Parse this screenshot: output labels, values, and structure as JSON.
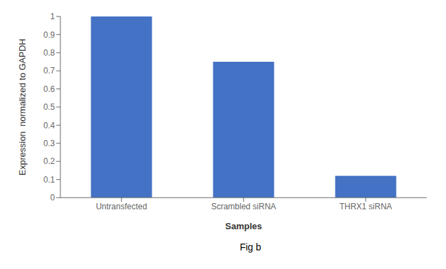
{
  "chart_data": {
    "type": "bar",
    "categories": [
      "Untransfected",
      "Scrambled siRNA",
      "THRX1 siRNA"
    ],
    "values": [
      1.0,
      0.75,
      0.12
    ],
    "color": "#4472C4",
    "xlabel": "Samples",
    "ylabel": "Expression  normalized to GAPDH",
    "ylim": [
      0,
      1.0
    ],
    "yticks": [
      0,
      0.1,
      0.2,
      0.3,
      0.4,
      0.5,
      0.6,
      0.7,
      0.8,
      0.9,
      1
    ],
    "grid": false,
    "annotations": [
      "Fig b"
    ]
  }
}
